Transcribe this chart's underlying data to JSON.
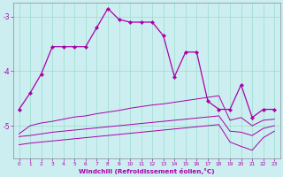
{
  "xlabel": "Windchill (Refroidissement éolien,°C)",
  "background_color": "#cceef0",
  "line_color": "#aa00aa",
  "x": [
    0,
    1,
    2,
    3,
    4,
    5,
    6,
    7,
    8,
    9,
    10,
    11,
    12,
    13,
    14,
    15,
    16,
    17,
    18,
    19,
    20,
    21,
    22,
    23
  ],
  "line1": [
    -4.7,
    -4.4,
    -4.05,
    -3.55,
    -3.55,
    -3.55,
    -3.55,
    -3.2,
    -2.85,
    -3.05,
    -3.1,
    -3.1,
    -3.1,
    -3.35,
    -4.1,
    -3.65,
    -3.65,
    -4.55,
    -4.7,
    -4.7,
    -4.25,
    -4.85,
    -4.7,
    -4.7
  ],
  "line2": [
    -5.15,
    -5.0,
    -4.95,
    -4.92,
    -4.88,
    -4.84,
    -4.82,
    -4.78,
    -4.75,
    -4.72,
    -4.68,
    -4.65,
    -4.62,
    -4.6,
    -4.57,
    -4.54,
    -4.51,
    -4.48,
    -4.45,
    -4.9,
    -4.85,
    -5.0,
    -4.9,
    -4.88
  ],
  "line3": [
    -5.2,
    -5.18,
    -5.15,
    -5.12,
    -5.1,
    -5.08,
    -5.06,
    -5.04,
    -5.02,
    -5.0,
    -4.98,
    -4.96,
    -4.94,
    -4.92,
    -4.9,
    -4.88,
    -4.86,
    -4.84,
    -4.82,
    -5.1,
    -5.12,
    -5.18,
    -5.05,
    -5.0
  ],
  "line4": [
    -5.35,
    -5.32,
    -5.3,
    -5.28,
    -5.26,
    -5.24,
    -5.22,
    -5.2,
    -5.18,
    -5.16,
    -5.14,
    -5.12,
    -5.1,
    -5.08,
    -5.06,
    -5.04,
    -5.02,
    -5.0,
    -4.98,
    -5.3,
    -5.38,
    -5.45,
    -5.22,
    -5.1
  ],
  "ylim": [
    -5.6,
    -2.75
  ],
  "yticks": [
    -5,
    -4,
    -3
  ],
  "ytick_labels": [
    "-5",
    "-4",
    "-3"
  ],
  "grid_color": "#99ddcc",
  "spine_color": "#888899"
}
